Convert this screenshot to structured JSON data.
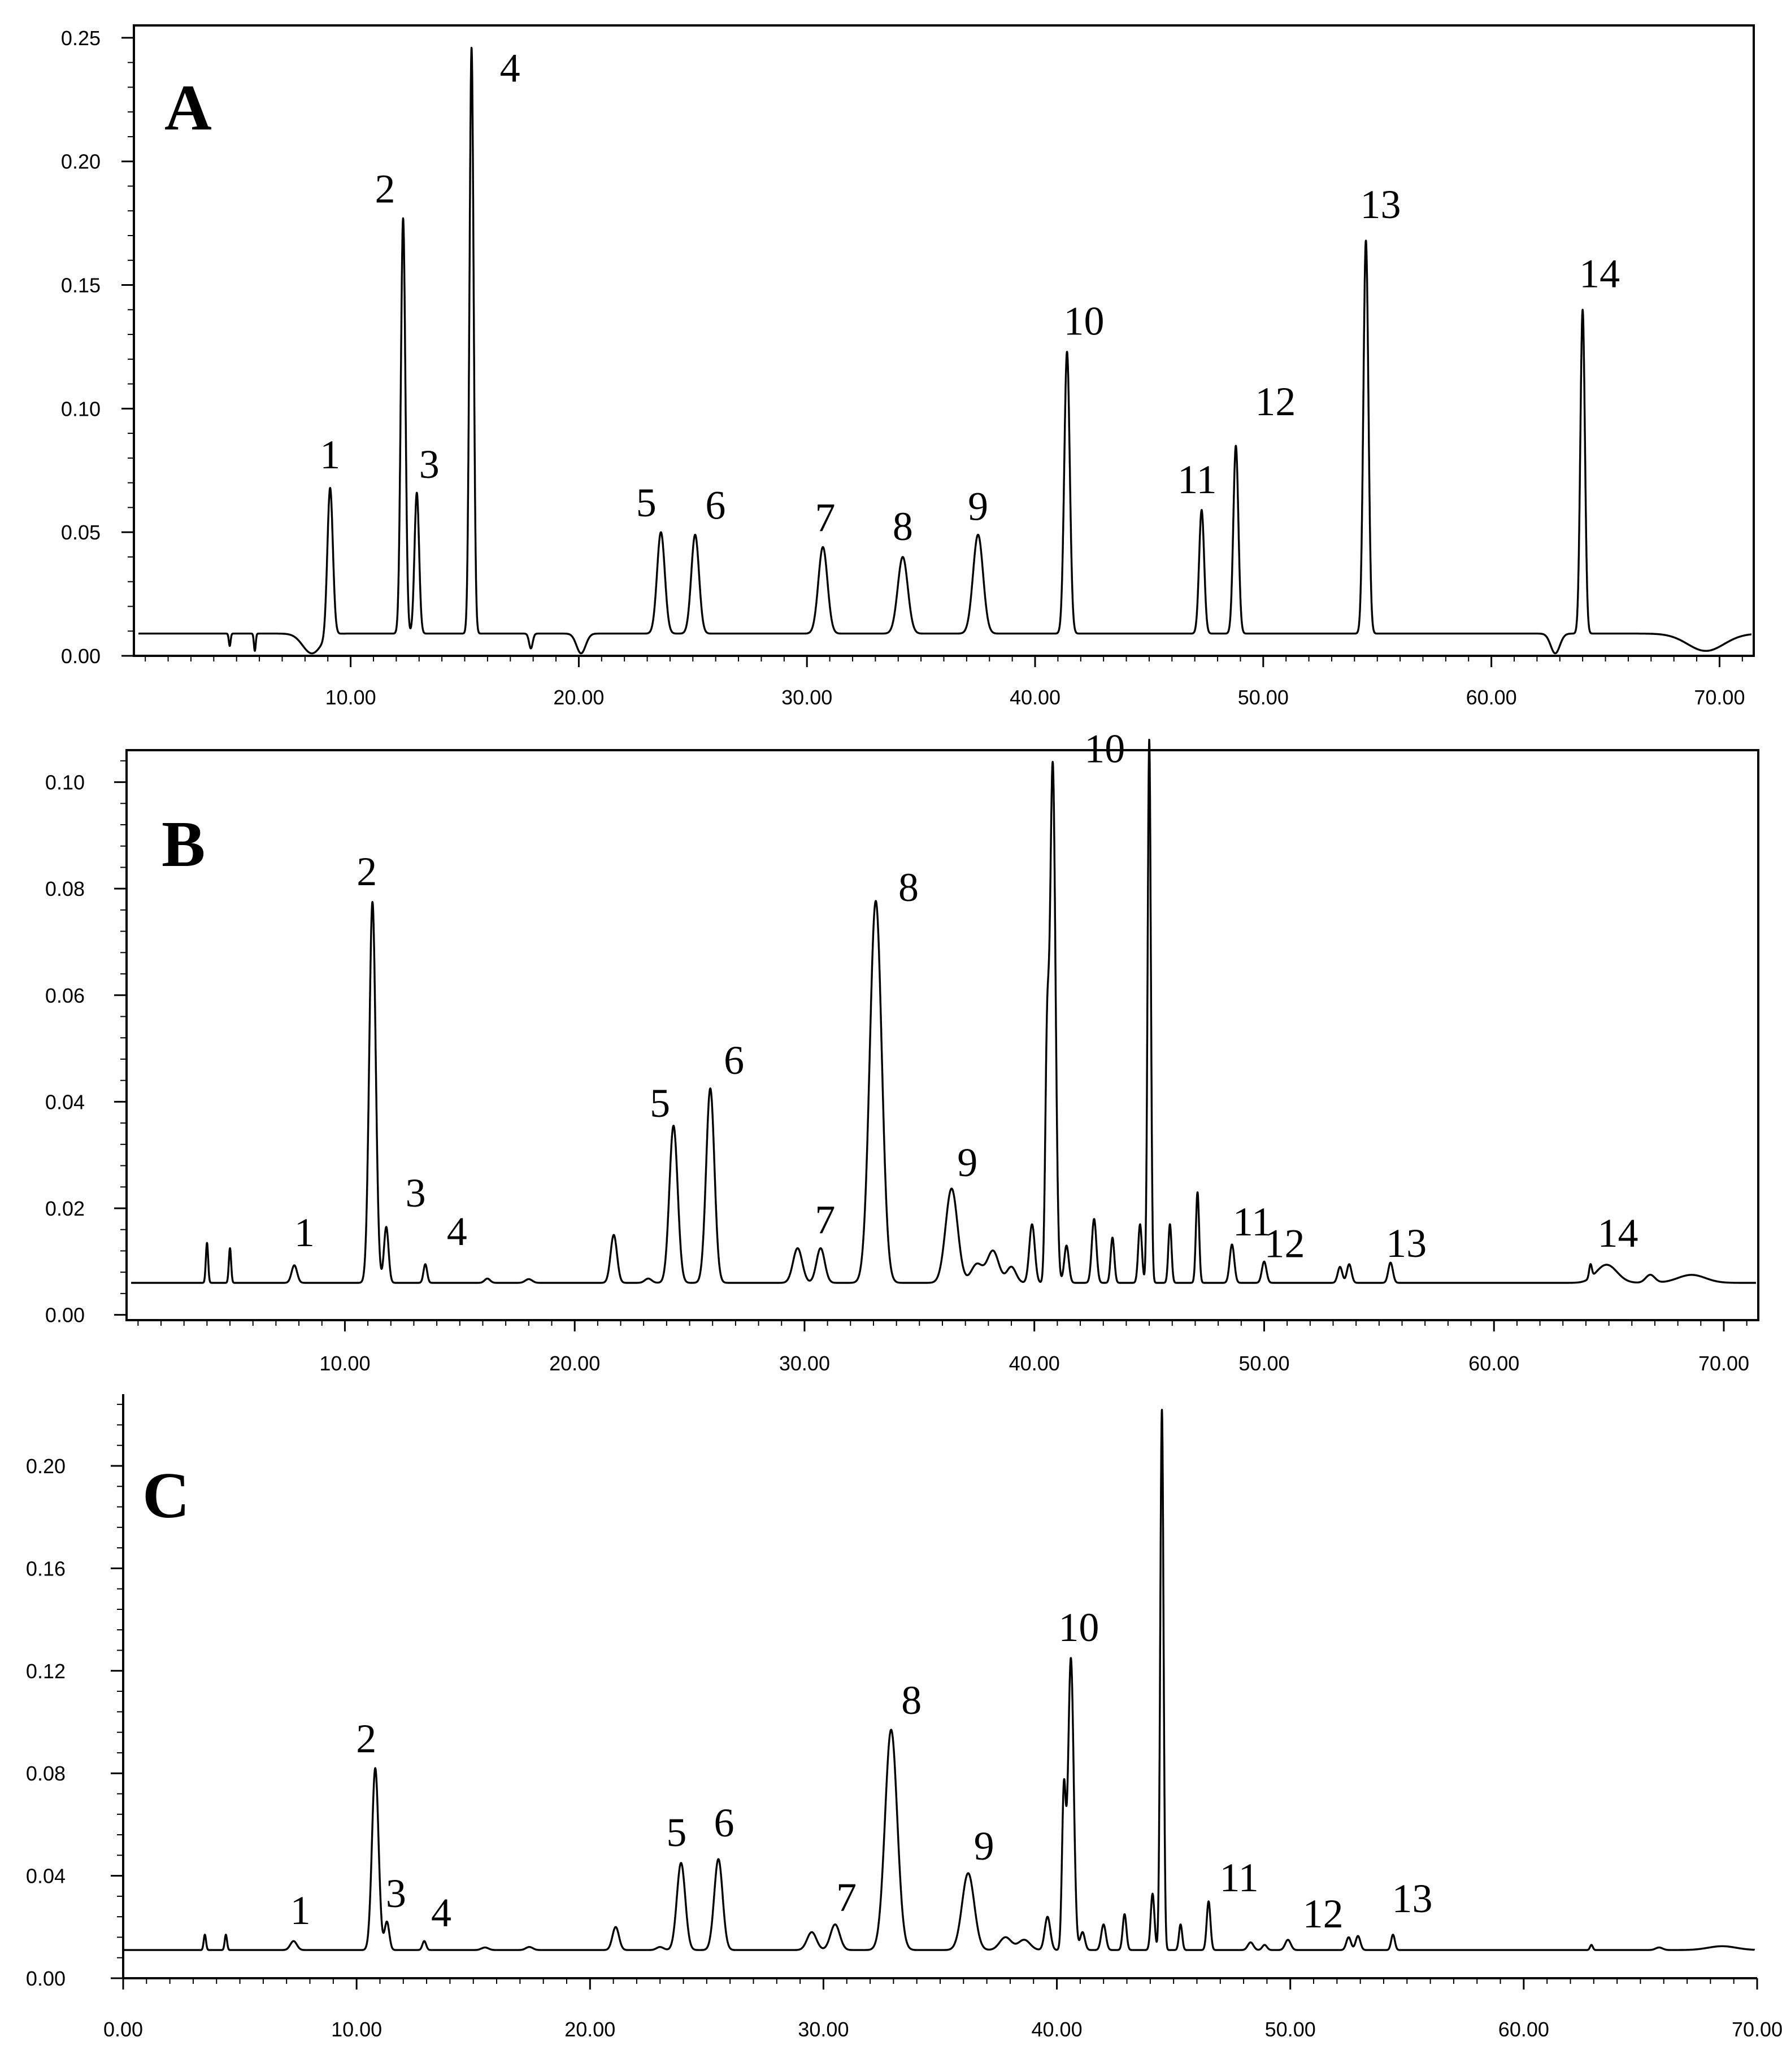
{
  "chart_data": [
    {
      "type": "line",
      "panel": "A",
      "xlim": [
        0.5,
        71.5
      ],
      "ylim": [
        0,
        0.255
      ],
      "baseline": 0.009,
      "x_ticks": [
        "10.00",
        "20.00",
        "30.00",
        "40.00",
        "50.00",
        "60.00",
        "70.00"
      ],
      "x_tick_values": [
        10,
        20,
        30,
        40,
        50,
        60,
        70
      ],
      "y_ticks": [
        "0.00",
        "0.05",
        "0.10",
        "0.15",
        "0.20",
        "0.25"
      ],
      "y_tick_values": [
        0,
        0.05,
        0.1,
        0.15,
        0.2,
        0.25
      ],
      "peaks": [
        {
          "label": "1",
          "x": 9.1,
          "y": 0.069,
          "w": 0.12
        },
        {
          "label": "2",
          "x": 12.3,
          "y": 0.177,
          "w": 0.1
        },
        {
          "label": "3",
          "x": 12.9,
          "y": 0.066,
          "w": 0.1
        },
        {
          "label": "4",
          "x": 15.3,
          "y": 0.246,
          "w": 0.09
        },
        {
          "label": "5",
          "x": 23.6,
          "y": 0.05,
          "w": 0.17
        },
        {
          "label": "6",
          "x": 25.1,
          "y": 0.049,
          "w": 0.17
        },
        {
          "label": "7",
          "x": 30.7,
          "y": 0.044,
          "w": 0.2
        },
        {
          "label": "8",
          "x": 34.2,
          "y": 0.04,
          "w": 0.22
        },
        {
          "label": "9",
          "x": 37.5,
          "y": 0.049,
          "w": 0.22
        },
        {
          "label": "10",
          "x": 41.4,
          "y": 0.123,
          "w": 0.12
        },
        {
          "label": "11",
          "x": 47.3,
          "y": 0.059,
          "w": 0.11
        },
        {
          "label": "12",
          "x": 48.8,
          "y": 0.085,
          "w": 0.11
        },
        {
          "label": "13",
          "x": 54.5,
          "y": 0.168,
          "w": 0.11
        },
        {
          "label": "14",
          "x": 64.0,
          "y": 0.14,
          "w": 0.1
        }
      ],
      "minor_peaks": [
        {
          "x": 4.7,
          "y": 0.004,
          "w": 0.04
        },
        {
          "x": 5.8,
          "y": 0.002,
          "w": 0.04
        },
        {
          "x": 17.9,
          "y": 0.003,
          "w": 0.08
        },
        {
          "x": 20.1,
          "y": 0.001,
          "w": 0.2
        },
        {
          "x": 8.3,
          "y": 0.001,
          "w": 0.4
        },
        {
          "x": 62.8,
          "y": 0.001,
          "w": 0.2
        },
        {
          "x": 69.4,
          "y": 0.002,
          "w": 0.8
        }
      ]
    },
    {
      "type": "line",
      "panel": "B",
      "xlim": [
        0.5,
        71.5
      ],
      "ylim": [
        -0.001,
        0.106
      ],
      "baseline": 0.006,
      "x_ticks": [
        "10.00",
        "20.00",
        "30.00",
        "40.00",
        "50.00",
        "60.00",
        "70.00"
      ],
      "x_tick_values": [
        10,
        20,
        30,
        40,
        50,
        60,
        70
      ],
      "y_ticks": [
        "0.00",
        "0.02",
        "0.04",
        "0.06",
        "0.08",
        "0.10"
      ],
      "y_tick_values": [
        0,
        0.02,
        0.04,
        0.06,
        0.08,
        0.1
      ],
      "peaks": [
        {
          "label": "1",
          "x": 7.8,
          "y": 0.0093,
          "w": 0.12
        },
        {
          "label": "2",
          "x": 11.2,
          "y": 0.0775,
          "w": 0.14
        },
        {
          "label": "3",
          "x": 11.8,
          "y": 0.0165,
          "w": 0.1
        },
        {
          "label": "4",
          "x": 13.5,
          "y": 0.0095,
          "w": 0.08
        },
        {
          "label": "5",
          "x": 24.3,
          "y": 0.0355,
          "w": 0.18
        },
        {
          "label": "6",
          "x": 25.9,
          "y": 0.0425,
          "w": 0.18
        },
        {
          "label": "7",
          "x": 30.7,
          "y": 0.0125,
          "w": 0.18
        },
        {
          "label": "8",
          "x": 33.1,
          "y": 0.0777,
          "w": 0.26
        },
        {
          "label": "9",
          "x": 36.4,
          "y": 0.0237,
          "w": 0.26
        },
        {
          "label": "10",
          "x": 40.8,
          "y": 0.1035,
          "w": 0.12
        },
        {
          "label": "11",
          "x": 48.6,
          "y": 0.0132,
          "w": 0.1
        },
        {
          "label": "12",
          "x": 50.0,
          "y": 0.01,
          "w": 0.1
        },
        {
          "label": "13",
          "x": 55.5,
          "y": 0.0098,
          "w": 0.1
        },
        {
          "label": "14",
          "x": 64.9,
          "y": 0.0094,
          "w": 0.45
        }
      ],
      "minor_peaks": [
        {
          "x": 4.0,
          "y": 0.0135,
          "w": 0.05
        },
        {
          "x": 5.0,
          "y": 0.0125,
          "w": 0.05
        },
        {
          "x": 21.7,
          "y": 0.015,
          "w": 0.14
        },
        {
          "x": 29.7,
          "y": 0.0125,
          "w": 0.2
        },
        {
          "x": 37.5,
          "y": 0.0095,
          "w": 0.25
        },
        {
          "x": 38.2,
          "y": 0.012,
          "w": 0.25
        },
        {
          "x": 39.0,
          "y": 0.009,
          "w": 0.2
        },
        {
          "x": 39.9,
          "y": 0.017,
          "w": 0.12
        },
        {
          "x": 40.55,
          "y": 0.046,
          "w": 0.08
        },
        {
          "x": 41.4,
          "y": 0.013,
          "w": 0.1
        },
        {
          "x": 42.6,
          "y": 0.018,
          "w": 0.1
        },
        {
          "x": 43.4,
          "y": 0.0145,
          "w": 0.08
        },
        {
          "x": 44.6,
          "y": 0.017,
          "w": 0.08
        },
        {
          "x": 45.0,
          "y": 0.108,
          "w": 0.07
        },
        {
          "x": 45.9,
          "y": 0.017,
          "w": 0.07
        },
        {
          "x": 47.1,
          "y": 0.023,
          "w": 0.07
        },
        {
          "x": 53.3,
          "y": 0.009,
          "w": 0.1
        },
        {
          "x": 53.7,
          "y": 0.0095,
          "w": 0.1
        },
        {
          "x": 64.2,
          "y": 0.0085,
          "w": 0.06
        },
        {
          "x": 66.8,
          "y": 0.0075,
          "w": 0.2
        },
        {
          "x": 68.6,
          "y": 0.0075,
          "w": 0.6
        },
        {
          "x": 18.0,
          "y": 0.0067,
          "w": 0.15
        },
        {
          "x": 16.2,
          "y": 0.0068,
          "w": 0.12
        },
        {
          "x": 23.2,
          "y": 0.0068,
          "w": 0.15
        }
      ]
    },
    {
      "type": "line",
      "panel": "C",
      "xlim": [
        0.0,
        70.0
      ],
      "ylim": [
        0,
        0.228
      ],
      "baseline": 0.011,
      "x_ticks": [
        "0.00",
        "10.00",
        "20.00",
        "30.00",
        "40.00",
        "50.00",
        "60.00",
        "70.00"
      ],
      "x_tick_values": [
        0,
        10,
        20,
        30,
        40,
        50,
        60,
        70
      ],
      "y_ticks": [
        "0.00",
        "0.04",
        "0.08",
        "0.12",
        "0.16",
        "0.20"
      ],
      "y_tick_values": [
        0,
        0.04,
        0.08,
        0.12,
        0.16,
        0.2
      ],
      "peaks": [
        {
          "label": "1",
          "x": 7.3,
          "y": 0.0145,
          "w": 0.14
        },
        {
          "label": "2",
          "x": 10.8,
          "y": 0.082,
          "w": 0.14
        },
        {
          "label": "3",
          "x": 11.3,
          "y": 0.022,
          "w": 0.1
        },
        {
          "label": "4",
          "x": 12.9,
          "y": 0.0145,
          "w": 0.08
        },
        {
          "label": "5",
          "x": 23.9,
          "y": 0.045,
          "w": 0.18
        },
        {
          "label": "6",
          "x": 25.5,
          "y": 0.0465,
          "w": 0.18
        },
        {
          "label": "7",
          "x": 30.5,
          "y": 0.021,
          "w": 0.2
        },
        {
          "label": "8",
          "x": 32.9,
          "y": 0.097,
          "w": 0.26
        },
        {
          "label": "9",
          "x": 36.2,
          "y": 0.041,
          "w": 0.26
        },
        {
          "label": "10",
          "x": 40.6,
          "y": 0.125,
          "w": 0.12
        },
        {
          "label": "11",
          "x": 46.5,
          "y": 0.03,
          "w": 0.08
        },
        {
          "label": "12",
          "x": 49.9,
          "y": 0.015,
          "w": 0.12
        },
        {
          "label": "13",
          "x": 54.4,
          "y": 0.017,
          "w": 0.08
        }
      ],
      "minor_peaks": [
        {
          "x": 3.5,
          "y": 0.017,
          "w": 0.05
        },
        {
          "x": 4.4,
          "y": 0.017,
          "w": 0.05
        },
        {
          "x": 21.1,
          "y": 0.02,
          "w": 0.14
        },
        {
          "x": 29.5,
          "y": 0.018,
          "w": 0.2
        },
        {
          "x": 37.8,
          "y": 0.016,
          "w": 0.25
        },
        {
          "x": 38.6,
          "y": 0.015,
          "w": 0.25
        },
        {
          "x": 39.6,
          "y": 0.024,
          "w": 0.12
        },
        {
          "x": 40.3,
          "y": 0.072,
          "w": 0.08
        },
        {
          "x": 41.1,
          "y": 0.018,
          "w": 0.1
        },
        {
          "x": 42.0,
          "y": 0.021,
          "w": 0.1
        },
        {
          "x": 42.9,
          "y": 0.025,
          "w": 0.08
        },
        {
          "x": 44.1,
          "y": 0.033,
          "w": 0.08
        },
        {
          "x": 44.5,
          "y": 0.222,
          "w": 0.07
        },
        {
          "x": 45.3,
          "y": 0.021,
          "w": 0.07
        },
        {
          "x": 48.3,
          "y": 0.014,
          "w": 0.12
        },
        {
          "x": 48.9,
          "y": 0.013,
          "w": 0.1
        },
        {
          "x": 52.5,
          "y": 0.016,
          "w": 0.1
        },
        {
          "x": 52.9,
          "y": 0.0165,
          "w": 0.1
        },
        {
          "x": 62.9,
          "y": 0.013,
          "w": 0.06
        },
        {
          "x": 65.8,
          "y": 0.012,
          "w": 0.15
        },
        {
          "x": 68.5,
          "y": 0.0125,
          "w": 0.6
        },
        {
          "x": 15.5,
          "y": 0.012,
          "w": 0.15
        },
        {
          "x": 17.4,
          "y": 0.0122,
          "w": 0.15
        },
        {
          "x": 23.0,
          "y": 0.0122,
          "w": 0.15
        }
      ]
    }
  ]
}
